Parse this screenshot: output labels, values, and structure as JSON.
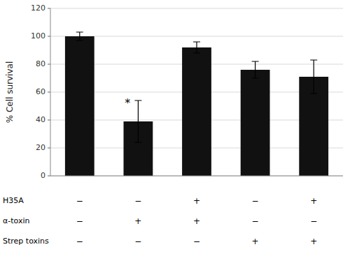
{
  "chart_data": {
    "type": "bar",
    "categories": [
      null,
      null,
      null,
      null,
      null
    ],
    "values": [
      100,
      39,
      92,
      76,
      71
    ],
    "errors": [
      3,
      15,
      4,
      6,
      12
    ],
    "color": "#111111",
    "ylabel": "% Cell survival",
    "ylim": [
      0,
      120
    ],
    "yticks": [
      0,
      20,
      40,
      60,
      80,
      100,
      120
    ],
    "grid": true,
    "annotations": [
      {
        "text": "*",
        "bar": 1,
        "y": 54
      }
    ],
    "row_labels": [
      "H35A",
      "α-toxin",
      "Strep toxins"
    ],
    "row_signs": [
      [
        "−",
        "−",
        "+",
        "−",
        "+"
      ],
      [
        "−",
        "+",
        "+",
        "−",
        "−"
      ],
      [
        "−",
        "−",
        "−",
        "+",
        "+"
      ]
    ]
  }
}
